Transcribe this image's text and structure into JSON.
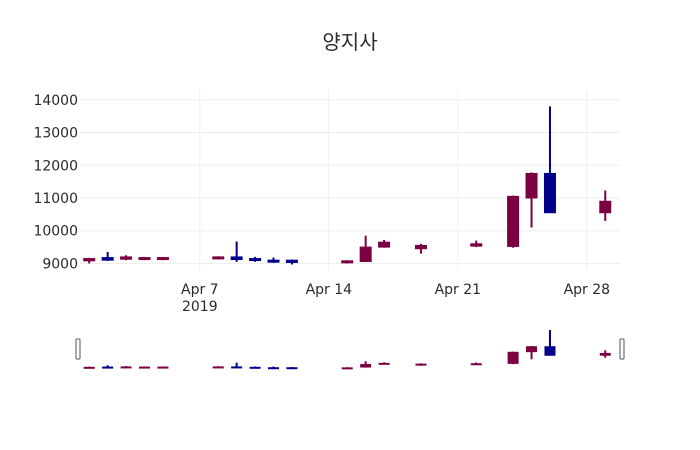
{
  "chart_data": {
    "type": "candlestick",
    "title": "양지사",
    "xlabel": "",
    "ylabel": "",
    "ylim": [
      8800,
      14300
    ],
    "x_tick_labels": [
      "Apr 7\n2019",
      "Apr 14",
      "Apr 21",
      "Apr 28"
    ],
    "y_tick_labels": [
      "9000",
      "10000",
      "11000",
      "12000",
      "13000",
      "14000"
    ],
    "rangeslider": true,
    "grid": true,
    "colors": {
      "increasing": "#00008B",
      "decreasing": "#7B0041"
    },
    "candles": [
      {
        "date": "2019-04-01",
        "open": 9150,
        "high": 9170,
        "low": 9000,
        "close": 9080
      },
      {
        "date": "2019-04-02",
        "open": 9100,
        "high": 9350,
        "low": 9080,
        "close": 9180
      },
      {
        "date": "2019-04-03",
        "open": 9200,
        "high": 9250,
        "low": 9100,
        "close": 9130
      },
      {
        "date": "2019-04-04",
        "open": 9180,
        "high": 9200,
        "low": 9100,
        "close": 9130
      },
      {
        "date": "2019-04-05",
        "open": 9180,
        "high": 9200,
        "low": 9100,
        "close": 9130
      },
      {
        "date": "2019-04-08",
        "open": 9200,
        "high": 9220,
        "low": 9130,
        "close": 9150
      },
      {
        "date": "2019-04-09",
        "open": 9120,
        "high": 9670,
        "low": 9050,
        "close": 9200
      },
      {
        "date": "2019-04-10",
        "open": 9100,
        "high": 9200,
        "low": 9050,
        "close": 9150
      },
      {
        "date": "2019-04-11",
        "open": 9080,
        "high": 9180,
        "low": 9020,
        "close": 9100
      },
      {
        "date": "2019-04-12",
        "open": 9030,
        "high": 9120,
        "low": 8970,
        "close": 9100
      },
      {
        "date": "2019-04-15",
        "open": 9080,
        "high": 9100,
        "low": 9000,
        "close": 9040
      },
      {
        "date": "2019-04-16",
        "open": 9500,
        "high": 9850,
        "low": 9050,
        "close": 9060
      },
      {
        "date": "2019-04-17",
        "open": 9650,
        "high": 9720,
        "low": 9480,
        "close": 9500
      },
      {
        "date": "2019-04-19",
        "open": 9550,
        "high": 9600,
        "low": 9300,
        "close": 9450
      },
      {
        "date": "2019-04-22",
        "open": 9600,
        "high": 9700,
        "low": 9500,
        "close": 9530
      },
      {
        "date": "2019-04-24",
        "open": 11050,
        "high": 11070,
        "low": 9480,
        "close": 9520
      },
      {
        "date": "2019-04-25",
        "open": 11750,
        "high": 11780,
        "low": 10100,
        "close": 11000
      },
      {
        "date": "2019-04-26",
        "open": 10550,
        "high": 13800,
        "low": 10550,
        "close": 11750
      },
      {
        "date": "2019-04-29",
        "open": 10900,
        "high": 11230,
        "low": 10300,
        "close": 10550
      }
    ]
  }
}
